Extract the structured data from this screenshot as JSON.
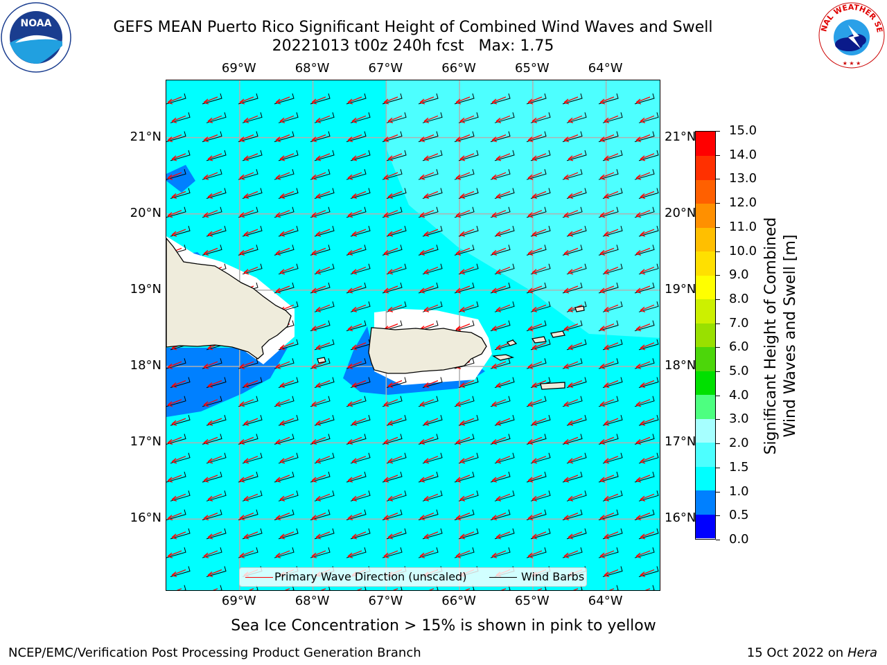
{
  "title": {
    "line1": "GEFS MEAN Puerto Rico Significant Height of Combined Wind Waves and Swell",
    "line2": "20221013 t00z 240h fcst   Max: 1.75"
  },
  "logos": {
    "left": {
      "text": "NOAA",
      "ring_text": "NATIONAL OCEANIC AND ATMOSPHERIC ADMINISTRATION · U.S. DEPARTMENT OF COMMERCE"
    },
    "right": {
      "ring_text": "NATIONAL WEATHER SERVICE"
    }
  },
  "map": {
    "lon_ticks": [
      "69°W",
      "68°W",
      "67°W",
      "66°W",
      "65°W",
      "64°W"
    ],
    "lat_ticks": [
      "21°N",
      "20°N",
      "19°N",
      "18°N",
      "17°N",
      "16°N"
    ],
    "lon_values": [
      -69,
      -68,
      -67,
      -66,
      -65,
      -64
    ],
    "lat_values": [
      21,
      20,
      19,
      18,
      17,
      16
    ],
    "extent": {
      "lon": [
        -70,
        -63.25
      ],
      "lat": [
        15.05,
        21.75
      ]
    },
    "ocean_color": "#00ffff",
    "light_region_color": "#4dffff",
    "shallow_color": "#0080ff",
    "land_color": "#efecdc",
    "legend": {
      "primary_wave_label": "Primary Wave Direction (unscaled)",
      "wind_barbs_label": "Wind Barbs",
      "primary_wave_color": "#ff0000",
      "wind_barbs_color": "#000000"
    }
  },
  "colorbar": {
    "title_line1": "Significant Height of Combined",
    "title_line2": "Wind Waves and Swell [m]",
    "levels": [
      "0.0",
      "0.5",
      "1.0",
      "1.5",
      "2.0",
      "3.0",
      "4.0",
      "5.0",
      "6.0",
      "7.0",
      "8.0",
      "9.0",
      "10.0",
      "11.0",
      "12.0",
      "13.0",
      "14.0",
      "15.0"
    ],
    "colors": [
      "#0000ff",
      "#0080ff",
      "#00ffff",
      "#4dffff",
      "#a6ffff",
      "#4dff80",
      "#00e000",
      "#4cd60a",
      "#99e000",
      "#ccf000",
      "#ffff00",
      "#ffe000",
      "#ffbf00",
      "#ff9000",
      "#ff6000",
      "#ff3000",
      "#ff0000"
    ]
  },
  "footnote": "Sea Ice Concentration > 15% is shown in pink to yellow",
  "footer": {
    "left": "NCEP/EMC/Verification Post Processing Product Generation Branch",
    "right_date": "15 Oct 2022 on ",
    "right_host": "Hera"
  }
}
